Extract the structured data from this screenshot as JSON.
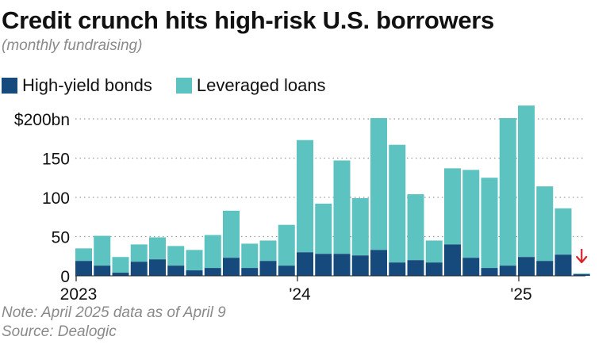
{
  "title": "Credit crunch hits high-risk U.S. borrowers",
  "subtitle": "(monthly fundraising)",
  "notes": {
    "note": "Note: April 2025 data as of April 9",
    "source": "Source: Dealogic"
  },
  "colors": {
    "high_yield": "#174a7c",
    "leveraged": "#5cc3c1",
    "arrow": "#d9232b",
    "grid": "#9a9a9a"
  },
  "chart_data": {
    "type": "bar",
    "stacked": true,
    "title": "Credit crunch hits high-risk U.S. borrowers",
    "subtitle": "(monthly fundraising)",
    "categories": [
      "Jan 2023",
      "Feb 2023",
      "Mar 2023",
      "Apr 2023",
      "May 2023",
      "Jun 2023",
      "Jul 2023",
      "Aug 2023",
      "Sep 2023",
      "Oct 2023",
      "Nov 2023",
      "Dec 2023",
      "Jan 2024",
      "Feb 2024",
      "Mar 2024",
      "Apr 2024",
      "May 2024",
      "Jun 2024",
      "Jul 2024",
      "Aug 2024",
      "Sep 2024",
      "Oct 2024",
      "Nov 2024",
      "Dec 2024",
      "Jan 2025",
      "Feb 2025",
      "Mar 2025",
      "Apr 2025"
    ],
    "series": [
      {
        "name": "High-yield bonds",
        "values": [
          19,
          13,
          4,
          18,
          21,
          13,
          7,
          10,
          23,
          10,
          19,
          13,
          30,
          28,
          28,
          26,
          33,
          17,
          20,
          17,
          40,
          23,
          10,
          13,
          24,
          19,
          27,
          2
        ]
      },
      {
        "name": "Leveraged loans",
        "values": [
          16,
          38,
          20,
          22,
          28,
          25,
          26,
          42,
          60,
          31,
          26,
          52,
          143,
          64,
          119,
          73,
          168,
          150,
          84,
          28,
          97,
          112,
          115,
          188,
          193,
          95,
          59,
          1
        ]
      }
    ],
    "x_tick_labels": [
      {
        "index": 0,
        "label": "2023"
      },
      {
        "index": 12,
        "label": "'24"
      },
      {
        "index": 24,
        "label": "'25"
      }
    ],
    "y_ticks": [
      {
        "value": 0,
        "label": "0"
      },
      {
        "value": 50,
        "label": "50"
      },
      {
        "value": 100,
        "label": "100"
      },
      {
        "value": 150,
        "label": "150"
      },
      {
        "value": 200,
        "label": "$200bn"
      }
    ],
    "ylim": [
      0,
      200
    ],
    "grid": true,
    "legend_position": "top-left",
    "annotation": {
      "type": "down-arrow",
      "index": 27
    }
  }
}
